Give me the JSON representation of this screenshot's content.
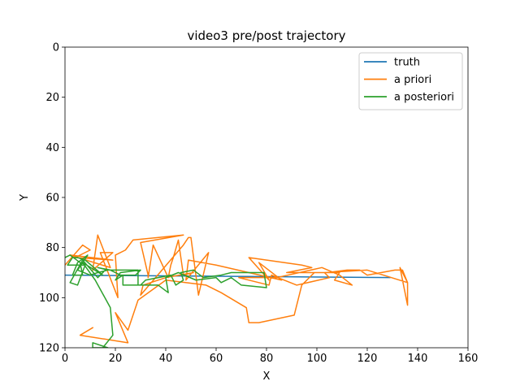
{
  "chart_data": {
    "type": "line",
    "title": "video3 pre/post trajectory",
    "xlabel": "X",
    "ylabel": "Y",
    "xlim": [
      0,
      160
    ],
    "ylim": [
      0,
      120
    ],
    "y_inverted": true,
    "xticks": [
      "0",
      "20",
      "40",
      "60",
      "80",
      "100",
      "120",
      "140",
      "160"
    ],
    "yticks": [
      "0",
      "20",
      "40",
      "60",
      "80",
      "100",
      "120"
    ],
    "grid": false,
    "legend_position": "top-right",
    "series": [
      {
        "name": "truth",
        "color": "#1f77b4",
        "points": [
          [
            0,
            91
          ],
          [
            129,
            92
          ]
        ]
      },
      {
        "name": "a priori",
        "color": "#ff7f0e",
        "points": [
          [
            0,
            87
          ],
          [
            7,
            79
          ],
          [
            10,
            81
          ],
          [
            4,
            84
          ],
          [
            19,
            85
          ],
          [
            2,
            83
          ],
          [
            18,
            88
          ],
          [
            13,
            75
          ],
          [
            11,
            89
          ],
          [
            19,
            82
          ],
          [
            14,
            82
          ],
          [
            21,
            100
          ],
          [
            20,
            83
          ],
          [
            24,
            81
          ],
          [
            27,
            77
          ],
          [
            47,
            75
          ],
          [
            30,
            78
          ],
          [
            33,
            91
          ],
          [
            33,
            92
          ],
          [
            35,
            79
          ],
          [
            41,
            92
          ],
          [
            42,
            87
          ],
          [
            43,
            84
          ],
          [
            45,
            77
          ],
          [
            47,
            91
          ],
          [
            51,
            90
          ],
          [
            40,
            92
          ],
          [
            31,
            95
          ],
          [
            30,
            99
          ],
          [
            47,
            79
          ],
          [
            49,
            76
          ],
          [
            50,
            76
          ],
          [
            53,
            99
          ],
          [
            57,
            82
          ],
          [
            48,
            93
          ],
          [
            49,
            85
          ],
          [
            60,
            87
          ],
          [
            86,
            93
          ],
          [
            77,
            86
          ],
          [
            81,
            93
          ],
          [
            73,
            84
          ],
          [
            94,
            87
          ],
          [
            98,
            88
          ],
          [
            88,
            90
          ],
          [
            108,
            90
          ],
          [
            101,
            90
          ],
          [
            104,
            90
          ],
          [
            112,
            89
          ],
          [
            117,
            89
          ],
          [
            120,
            91
          ],
          [
            131,
            89
          ],
          [
            134,
            89
          ],
          [
            136,
            94
          ],
          [
            133,
            88
          ],
          [
            136,
            103
          ],
          [
            136,
            94
          ],
          [
            120,
            89
          ],
          [
            103,
            90
          ],
          [
            105,
            92
          ],
          [
            92,
            95
          ],
          [
            82,
            91
          ],
          [
            81,
            95
          ],
          [
            69,
            92
          ],
          [
            84,
            92
          ],
          [
            102,
            88
          ],
          [
            109,
            91
          ],
          [
            114,
            95
          ],
          [
            107,
            93
          ],
          [
            109,
            90
          ],
          [
            99,
            90
          ],
          [
            94,
            95
          ],
          [
            91,
            107
          ],
          [
            77,
            110
          ],
          [
            73,
            110
          ],
          [
            72,
            104
          ],
          [
            62,
            98
          ],
          [
            56,
            95
          ],
          [
            40,
            93
          ],
          [
            29,
            101
          ],
          [
            25,
            113
          ],
          [
            20,
            106
          ],
          [
            25,
            118
          ],
          [
            6,
            115
          ],
          [
            11,
            112
          ]
        ]
      },
      {
        "name": "a posteriori",
        "color": "#2ca02c",
        "points": [
          [
            0,
            84
          ],
          [
            2,
            83
          ],
          [
            6,
            86
          ],
          [
            7,
            91
          ],
          [
            3,
            91
          ],
          [
            5,
            86
          ],
          [
            9,
            83
          ],
          [
            5,
            89
          ],
          [
            10,
            91
          ],
          [
            13,
            90
          ],
          [
            17,
            89
          ],
          [
            13,
            88
          ],
          [
            18,
            89
          ],
          [
            22,
            91
          ],
          [
            28,
            91
          ],
          [
            30,
            89
          ],
          [
            22,
            90
          ],
          [
            20,
            93
          ],
          [
            23,
            91
          ],
          [
            23,
            95
          ],
          [
            30,
            95
          ],
          [
            32,
            93
          ],
          [
            42,
            91
          ],
          [
            44,
            95
          ],
          [
            47,
            93
          ],
          [
            46,
            90
          ],
          [
            51,
            89
          ],
          [
            55,
            92
          ],
          [
            62,
            91
          ],
          [
            66,
            90
          ],
          [
            79,
            90
          ],
          [
            80,
            96
          ],
          [
            70,
            95
          ],
          [
            66,
            92
          ],
          [
            62,
            94
          ],
          [
            60,
            92
          ],
          [
            52,
            93
          ],
          [
            45,
            90
          ],
          [
            40,
            92
          ],
          [
            41,
            98
          ],
          [
            37,
            95
          ],
          [
            29,
            95
          ],
          [
            29,
            89
          ],
          [
            16,
            89
          ],
          [
            13,
            92
          ],
          [
            7,
            85
          ],
          [
            2,
            94
          ],
          [
            5,
            95
          ],
          [
            8,
            87
          ],
          [
            1,
            87
          ],
          [
            3,
            84
          ],
          [
            5,
            84
          ],
          [
            8,
            85
          ],
          [
            15,
            91
          ],
          [
            7,
            86
          ],
          [
            12,
            93
          ],
          [
            18,
            104
          ],
          [
            19,
            115
          ],
          [
            15,
            120
          ],
          [
            11,
            120
          ],
          [
            11,
            118
          ],
          [
            17,
            120
          ],
          [
            13,
            120
          ]
        ]
      }
    ]
  }
}
